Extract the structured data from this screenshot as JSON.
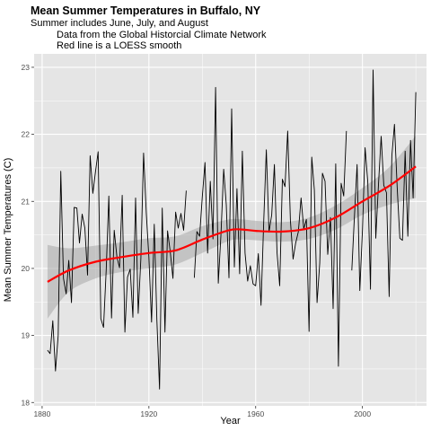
{
  "chart_data": {
    "type": "line",
    "title": "Mean Summer Temperatures in Buffalo, NY",
    "subtitle": [
      "Summer includes June, July, and August",
      "Data from the Global Historcial Climate Network",
      "Red line is a LOESS smooth"
    ],
    "xlabel": "Year",
    "ylabel": "Mean Summer Temperatures (C)",
    "xlim": [
      1877,
      2024
    ],
    "ylim": [
      17.95,
      23.2
    ],
    "x_ticks": [
      1880,
      1920,
      1960,
      2000
    ],
    "y_ticks": [
      18,
      19,
      20,
      21,
      22,
      23
    ],
    "grid": true,
    "colors": {
      "panel": "#e5e5e5",
      "grid": "#ffffff",
      "observed": "#000000",
      "smooth": "#ff0000",
      "ribbon": "#bdbdbd"
    },
    "series": [
      {
        "x": [
          1882,
          1883,
          1884,
          1885,
          1886,
          1887,
          1888,
          1889,
          1890,
          1891,
          1892,
          1893,
          1894,
          1895,
          1896,
          1897,
          1898,
          1899,
          1900,
          1901,
          1902,
          1903,
          1904,
          1905,
          1906,
          1907,
          1908,
          1909,
          1910,
          1911,
          1912,
          1913,
          1914,
          1915,
          1916,
          1917,
          1918,
          1919,
          1920,
          1921,
          1922,
          1923,
          1924,
          1925,
          1926,
          1927,
          1928,
          1929,
          1930,
          1931,
          1932,
          1933,
          1934,
          1935,
          1936,
          1937,
          1938,
          1939,
          1940,
          1941,
          1942,
          1943,
          1944,
          1945,
          1946,
          1947,
          1948,
          1949,
          1950,
          1951,
          1952,
          1953,
          1954,
          1955,
          1956,
          1957,
          1958,
          1959,
          1960,
          1961,
          1962,
          1963,
          1964,
          1965,
          1966,
          1967,
          1968,
          1969,
          1970,
          1971,
          1972,
          1973,
          1974,
          1975,
          1976,
          1977,
          1978,
          1979,
          1980,
          1981,
          1982,
          1983,
          1984,
          1985,
          1986,
          1987,
          1988,
          1989,
          1990,
          1991,
          1992,
          1993,
          1994,
          1995,
          1996,
          1997,
          1998,
          1999,
          2000,
          2001,
          2002,
          2003,
          2004,
          2005,
          2006,
          2007,
          2008,
          2009,
          2010,
          2011,
          2012,
          2013,
          2014,
          2015,
          2016,
          2017,
          2018,
          2019,
          2020
        ],
        "values": [
          18.78,
          18.73,
          19.22,
          18.47,
          19.0,
          21.45,
          19.85,
          19.62,
          20.12,
          19.49,
          20.91,
          20.9,
          20.38,
          20.81,
          20.6,
          19.9,
          21.68,
          21.12,
          21.45,
          21.74,
          19.25,
          19.12,
          19.98,
          21.08,
          19.26,
          20.57,
          20.17,
          20.01,
          21.09,
          19.05,
          19.87,
          19.99,
          19.27,
          21.05,
          19.33,
          20.15,
          21.72,
          20.83,
          20.17,
          19.2,
          20.66,
          19.23,
          18.2,
          20.9,
          19.05,
          20.56,
          20.25,
          19.85,
          20.84,
          20.6,
          20.82,
          20.57,
          21.16,
          null,
          null,
          19.86,
          20.55,
          20.48,
          21.07,
          21.58,
          20.23,
          21.3,
          20.44,
          22.7,
          19.78,
          20.51,
          21.48,
          20.95,
          19.86,
          22.38,
          20.02,
          21.19,
          19.92,
          21.75,
          20.23,
          19.81,
          20.04,
          19.77,
          19.74,
          20.22,
          19.45,
          20.7,
          21.77,
          20.54,
          20.8,
          21.55,
          20.24,
          19.74,
          21.33,
          21.22,
          22.05,
          20.72,
          20.14,
          20.38,
          20.55,
          21.05,
          20.59,
          20.73,
          19.06,
          21.66,
          21.17,
          19.49,
          20.08,
          21.42,
          21.3,
          20.21,
          20.76,
          19.4,
          21.56,
          18.54,
          21.27,
          21.08,
          22.05,
          null,
          19.97,
          20.77,
          21.55,
          19.67,
          20.58,
          21.8,
          21.29,
          19.69,
          22.96,
          20.45,
          21.25,
          21.97,
          21.24,
          21.13,
          19.58,
          21.68,
          22.15,
          21.22,
          20.45,
          20.42,
          21.75,
          20.48,
          21.91,
          21.05,
          22.63
        ]
      },
      {
        "name": "LOESS smooth",
        "x": [
          1882,
          1890,
          1900,
          1910,
          1920,
          1930,
          1940,
          1950,
          1955,
          1960,
          1970,
          1980,
          1990,
          2000,
          2010,
          2020
        ],
        "values": [
          19.8,
          19.97,
          20.1,
          20.17,
          20.23,
          20.27,
          20.43,
          20.57,
          20.58,
          20.56,
          20.55,
          20.6,
          20.76,
          21.0,
          21.23,
          21.52
        ],
        "ci_lower": [
          19.25,
          19.65,
          19.85,
          19.95,
          20.0,
          20.06,
          20.23,
          20.41,
          20.43,
          20.42,
          20.4,
          20.44,
          20.58,
          20.8,
          20.95,
          21.05
        ],
        "ci_upper": [
          20.35,
          20.3,
          20.34,
          20.39,
          20.45,
          20.48,
          20.63,
          20.73,
          20.73,
          20.71,
          20.69,
          20.76,
          20.94,
          21.2,
          21.51,
          21.98
        ]
      }
    ]
  }
}
